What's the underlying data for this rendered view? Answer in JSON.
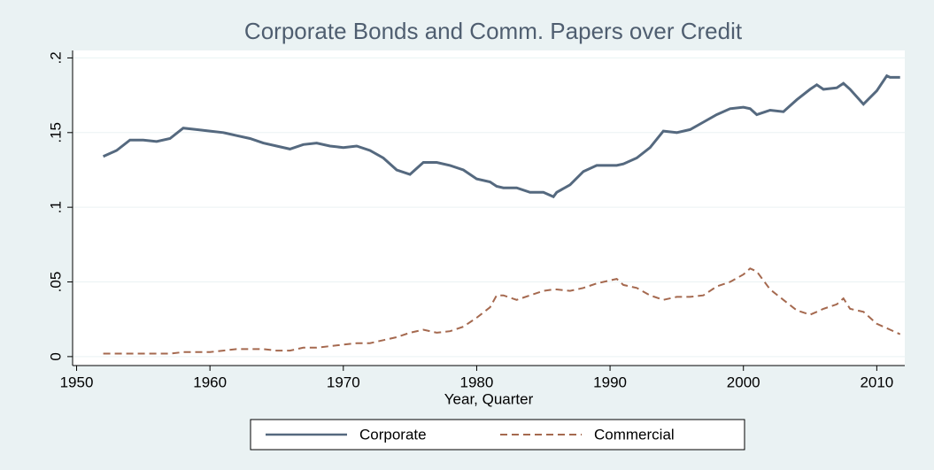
{
  "chart_data": {
    "type": "line",
    "title": "Corporate Bonds and Comm. Papers over Credit",
    "x_label": "Year, Quarter",
    "x": [
      1952,
      1953,
      1954,
      1955,
      1956,
      1957,
      1958,
      1959,
      1960,
      1961,
      1962,
      1963,
      1964,
      1965,
      1966,
      1967,
      1968,
      1969,
      1970,
      1971,
      1972,
      1973,
      1974,
      1975,
      1976,
      1977,
      1978,
      1979,
      1980,
      1981,
      1981.5,
      1982,
      1983,
      1984,
      1985,
      1985.75,
      1986,
      1987,
      1988,
      1989,
      1990,
      1990.5,
      1991,
      1992,
      1993,
      1994,
      1995,
      1996,
      1997,
      1998,
      1999,
      2000,
      2000.5,
      2001,
      2002,
      2003,
      2004,
      2005,
      2005.5,
      2006,
      2007,
      2007.5,
      2008,
      2009,
      2010,
      2010.75,
      2011,
      2011.75
    ],
    "series": [
      {
        "name": "Corporate",
        "color": "#55697f",
        "dash": "solid",
        "values": [
          0.134,
          0.138,
          0.145,
          0.145,
          0.144,
          0.146,
          0.153,
          0.152,
          0.151,
          0.15,
          0.148,
          0.146,
          0.143,
          0.141,
          0.139,
          0.142,
          0.143,
          0.141,
          0.14,
          0.141,
          0.138,
          0.133,
          0.125,
          0.122,
          0.13,
          0.13,
          0.128,
          0.125,
          0.119,
          0.117,
          0.114,
          0.113,
          0.113,
          0.11,
          0.11,
          0.107,
          0.11,
          0.115,
          0.124,
          0.128,
          0.128,
          0.128,
          0.129,
          0.133,
          0.14,
          0.151,
          0.15,
          0.152,
          0.157,
          0.162,
          0.166,
          0.167,
          0.166,
          0.162,
          0.165,
          0.164,
          0.172,
          0.179,
          0.182,
          0.179,
          0.18,
          0.183,
          0.179,
          0.169,
          0.178,
          0.188,
          0.187,
          0.187
        ]
      },
      {
        "name": "Commercial",
        "color": "#a5694f",
        "dash": "dashed",
        "values": [
          0.002,
          0.002,
          0.002,
          0.002,
          0.002,
          0.002,
          0.003,
          0.003,
          0.003,
          0.004,
          0.005,
          0.005,
          0.005,
          0.004,
          0.004,
          0.006,
          0.006,
          0.007,
          0.008,
          0.009,
          0.009,
          0.011,
          0.013,
          0.016,
          0.018,
          0.016,
          0.017,
          0.02,
          0.026,
          0.033,
          0.041,
          0.041,
          0.038,
          0.041,
          0.044,
          0.045,
          0.045,
          0.044,
          0.046,
          0.049,
          0.051,
          0.052,
          0.048,
          0.046,
          0.041,
          0.038,
          0.04,
          0.04,
          0.041,
          0.047,
          0.05,
          0.055,
          0.059,
          0.057,
          0.045,
          0.038,
          0.031,
          0.028,
          0.03,
          0.032,
          0.035,
          0.039,
          0.032,
          0.03,
          0.022,
          0.019,
          0.018,
          0.015
        ]
      }
    ],
    "xlim": [
      1949.7,
      2012.1
    ],
    "xticks": [
      1950,
      1960,
      1970,
      1980,
      1990,
      2000,
      2010
    ],
    "ylim": [
      -0.006,
      0.205
    ],
    "yticks": [
      0,
      {
        "value": 0.05,
        "label": ".05"
      },
      {
        "value": 0.1,
        "label": ".1"
      },
      {
        "value": 0.15,
        "label": ".15"
      },
      {
        "value": 0.2,
        "label": ".2"
      }
    ],
    "grid": true,
    "legend": "bottom"
  }
}
